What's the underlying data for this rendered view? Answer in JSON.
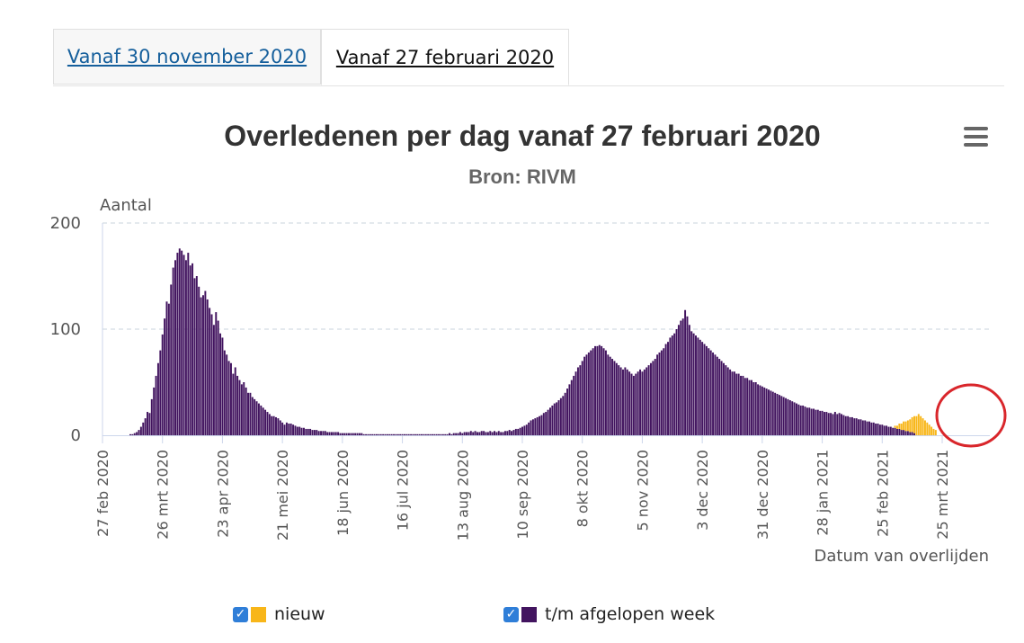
{
  "tabs": [
    {
      "label": "Vanaf 30 november 2020"
    },
    {
      "label": "Vanaf 27 februari 2020"
    }
  ],
  "colors": {
    "new": "#f8b619",
    "week": "#42145f",
    "circle": "#d9262b",
    "grid": "#c9d3dc"
  },
  "chart_data": {
    "type": "bar",
    "title": "Overledenen per dag vanaf 27 februari 2020",
    "subtitle": "Bron: RIVM",
    "ylabel": "Aantal",
    "xlabel": "Datum van overlijden",
    "ylim": [
      0,
      200
    ],
    "yticks": [
      0,
      100,
      200
    ],
    "grid": true,
    "legend_position": "bottom",
    "x_start": "2020-02-27",
    "xtick_labels": [
      {
        "date": "2020-02-27",
        "label": "27 feb 2020"
      },
      {
        "date": "2020-03-26",
        "label": "26 mrt 2020"
      },
      {
        "date": "2020-04-23",
        "label": "23 apr 2020"
      },
      {
        "date": "2020-05-21",
        "label": "21 mei 2020"
      },
      {
        "date": "2020-06-18",
        "label": "18 jun 2020"
      },
      {
        "date": "2020-07-16",
        "label": "16 jul 2020"
      },
      {
        "date": "2020-08-13",
        "label": "13 aug 2020"
      },
      {
        "date": "2020-09-10",
        "label": "10 sep 2020"
      },
      {
        "date": "2020-10-08",
        "label": "8 okt 2020"
      },
      {
        "date": "2020-11-05",
        "label": "5 nov 2020"
      },
      {
        "date": "2020-12-03",
        "label": "3 dec 2020"
      },
      {
        "date": "2020-12-31",
        "label": "31 dec 2020"
      },
      {
        "date": "2021-01-28",
        "label": "28 jan 2021"
      },
      {
        "date": "2021-02-25",
        "label": "25 feb 2021"
      },
      {
        "date": "2021-03-25",
        "label": "25 mrt 2021"
      }
    ],
    "series": [
      {
        "name": "t/m afgelopen week",
        "color": "#42145f",
        "values": [
          0,
          0,
          0,
          0,
          0,
          0,
          0,
          0,
          0,
          0,
          0,
          0,
          0,
          1,
          1,
          2,
          3,
          5,
          8,
          12,
          16,
          22,
          21,
          34,
          45,
          56,
          68,
          80,
          95,
          110,
          126,
          124,
          142,
          158,
          165,
          172,
          176,
          174,
          170,
          165,
          172,
          160,
          162,
          148,
          150,
          140,
          130,
          132,
          136,
          128,
          120,
          114,
          104,
          116,
          108,
          96,
          92,
          80,
          76,
          70,
          68,
          58,
          64,
          56,
          52,
          48,
          50,
          45,
          40,
          40,
          36,
          34,
          32,
          30,
          28,
          26,
          24,
          22,
          20,
          18,
          18,
          17,
          16,
          14,
          12,
          10,
          12,
          11,
          11,
          10,
          9,
          8,
          8,
          7,
          7,
          6,
          6,
          6,
          5,
          5,
          5,
          4,
          4,
          4,
          4,
          3,
          3,
          3,
          3,
          3,
          3,
          2,
          2,
          2,
          2,
          2,
          2,
          2,
          2,
          2,
          2,
          2,
          1,
          1,
          1,
          1,
          1,
          1,
          1,
          1,
          1,
          1,
          1,
          1,
          1,
          1,
          1,
          1,
          1,
          1,
          1,
          1,
          1,
          1,
          1,
          1,
          1,
          1,
          1,
          1,
          1,
          1,
          1,
          1,
          1,
          1,
          1,
          1,
          1,
          1,
          1,
          1,
          2,
          1,
          2,
          2,
          2,
          3,
          2,
          3,
          3,
          3,
          4,
          3,
          4,
          3,
          3,
          4,
          4,
          3,
          3,
          4,
          3,
          4,
          3,
          4,
          3,
          3,
          4,
          4,
          5,
          4,
          5,
          6,
          6,
          7,
          8,
          9,
          10,
          12,
          14,
          15,
          16,
          17,
          18,
          19,
          21,
          22,
          24,
          26,
          28,
          30,
          31,
          33,
          35,
          37,
          40,
          44,
          48,
          52,
          56,
          60,
          64,
          66,
          70,
          74,
          76,
          78,
          80,
          82,
          84,
          84,
          85,
          84,
          82,
          80,
          76,
          74,
          72,
          70,
          68,
          66,
          64,
          62,
          64,
          62,
          60,
          58,
          56,
          58,
          60,
          62,
          60,
          62,
          64,
          66,
          68,
          70,
          72,
          76,
          78,
          80,
          82,
          86,
          88,
          92,
          94,
          96,
          100,
          104,
          108,
          110,
          118,
          112,
          104,
          98,
          96,
          94,
          92,
          90,
          88,
          86,
          84,
          82,
          80,
          78,
          76,
          74,
          72,
          70,
          68,
          66,
          64,
          62,
          60,
          60,
          58,
          58,
          56,
          56,
          54,
          54,
          52,
          52,
          50,
          50,
          48,
          47,
          46,
          45,
          44,
          43,
          42,
          41,
          40,
          39,
          38,
          37,
          36,
          35,
          34,
          33,
          32,
          31,
          30,
          29,
          28,
          28,
          27,
          26,
          26,
          25,
          25,
          24,
          24,
          23,
          23,
          22,
          22,
          21,
          21,
          20,
          22,
          20,
          21,
          20,
          19,
          18,
          18,
          17,
          17,
          16,
          16,
          15,
          15,
          14,
          14,
          13,
          13,
          12,
          12,
          11,
          11,
          10,
          10,
          9,
          9,
          8,
          8,
          7,
          7,
          6,
          6,
          5,
          5,
          4,
          4,
          3,
          3,
          2
        ]
      },
      {
        "name": "nieuw",
        "color": "#f8b619",
        "values": [
          0,
          0,
          0,
          0,
          0,
          0,
          0,
          0,
          0,
          0,
          0,
          0,
          0,
          0,
          0,
          0,
          0,
          0,
          0,
          0,
          0,
          0,
          0,
          0,
          0,
          0,
          0,
          0,
          0,
          0,
          0,
          0,
          0,
          0,
          0,
          0,
          0,
          0,
          0,
          0,
          0,
          0,
          0,
          0,
          0,
          0,
          0,
          0,
          0,
          0,
          0,
          0,
          0,
          0,
          0,
          0,
          0,
          0,
          0,
          0,
          0,
          0,
          0,
          0,
          0,
          0,
          0,
          0,
          0,
          0,
          0,
          0,
          0,
          0,
          0,
          0,
          0,
          0,
          0,
          0,
          0,
          0,
          0,
          0,
          0,
          0,
          0,
          0,
          0,
          0,
          0,
          0,
          0,
          0,
          0,
          0,
          0,
          0,
          0,
          0,
          0,
          0,
          0,
          0,
          0,
          0,
          0,
          0,
          0,
          0,
          0,
          0,
          0,
          0,
          0,
          0,
          0,
          0,
          0,
          0,
          0,
          0,
          0,
          0,
          0,
          0,
          0,
          0,
          0,
          0,
          0,
          0,
          0,
          0,
          0,
          0,
          0,
          0,
          0,
          0,
          0,
          0,
          0,
          0,
          0,
          0,
          0,
          0,
          0,
          0,
          0,
          0,
          0,
          0,
          0,
          0,
          0,
          0,
          0,
          0,
          0,
          0,
          0,
          0,
          0,
          0,
          0,
          0,
          0,
          0,
          0,
          0,
          0,
          0,
          0,
          0,
          0,
          0,
          0,
          0,
          0,
          0,
          0,
          0,
          0,
          0,
          0,
          0,
          0,
          0,
          0,
          0,
          0,
          0,
          0,
          0,
          0,
          0,
          0,
          0,
          0,
          0,
          0,
          0,
          0,
          0,
          0,
          0,
          0,
          0,
          0,
          0,
          0,
          0,
          0,
          0,
          0,
          0,
          0,
          0,
          0,
          0,
          0,
          0,
          0,
          0,
          0,
          0,
          0,
          0,
          0,
          0,
          0,
          0,
          0,
          0,
          0,
          0,
          0,
          0,
          0,
          0,
          0,
          0,
          0,
          0,
          0,
          0,
          0,
          0,
          0,
          0,
          0,
          0,
          0,
          0,
          0,
          0,
          0,
          0,
          0,
          0,
          0,
          0,
          0,
          0,
          0,
          0,
          0,
          0,
          0,
          0,
          0,
          0,
          0,
          0,
          0,
          0,
          0,
          0,
          0,
          0,
          0,
          0,
          0,
          0,
          0,
          0,
          0,
          0,
          0,
          0,
          0,
          0,
          0,
          0,
          0,
          0,
          0,
          0,
          0,
          0,
          0,
          0,
          0,
          0,
          0,
          0,
          0,
          0,
          0,
          0,
          0,
          0,
          0,
          0,
          0,
          0,
          0,
          0,
          0,
          0,
          0,
          0,
          0,
          0,
          0,
          0,
          0,
          0,
          0,
          0,
          0,
          0,
          0,
          0,
          0,
          0,
          0,
          0,
          0,
          0,
          0,
          0,
          0,
          0,
          0,
          0,
          0,
          0,
          0,
          0,
          0,
          0,
          0,
          0,
          0,
          0,
          0,
          0,
          0,
          0,
          0,
          0,
          0,
          0,
          0,
          0,
          0,
          0,
          2,
          3,
          5,
          6,
          8,
          9,
          10,
          12,
          14,
          16,
          18,
          20,
          18,
          16,
          14,
          12,
          10,
          8,
          6,
          5
        ]
      }
    ]
  },
  "legend": {
    "new_label": "nieuw",
    "week_label": "t/m afgelopen week"
  }
}
